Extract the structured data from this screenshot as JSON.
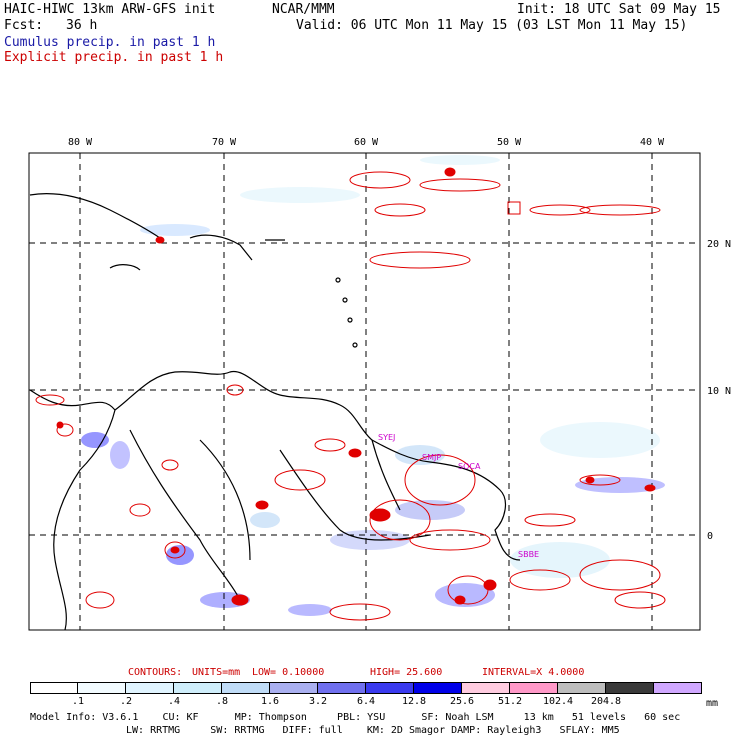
{
  "header": {
    "model_title": "HAIC-HIWC 13km ARW-GFS init",
    "org": "NCAR/MMM",
    "init": "Init: 18 UTC Sat 09 May 15",
    "fcst_label": "Fcst:",
    "fcst_value": "36 h",
    "valid": "Valid: 06 UTC Mon 11 May 15 (03 LST Mon 11 May 15)",
    "cumulus_legend": "Cumulus precip. in past 1 h",
    "explicit_legend": "Explicit precip. in past 1 h"
  },
  "map": {
    "lon_labels": [
      "80 W",
      "70 W",
      "60 W",
      "50 W",
      "40 W"
    ],
    "lat_labels": [
      "20 N",
      "10 N",
      "0"
    ],
    "stations": [
      "SYEJ",
      "SMJP",
      "SOCA",
      "SBBE"
    ],
    "colors": {
      "coast": "#000000",
      "explicit": "#e00000",
      "cumulus": "#5a5aff",
      "station": "#cc00cc"
    }
  },
  "contours": {
    "label": "CONTOURS:",
    "units": "UNITS=mm",
    "low": "LOW= 0.10000",
    "high": "HIGH= 25.600",
    "interval": "INTERVAL=X 4.0000"
  },
  "colorbar": {
    "unit": "mm",
    "labels": [
      ".1",
      ".2",
      ".4",
      ".8",
      "1.6",
      "3.2",
      "6.4",
      "12.8",
      "25.6",
      "51.2",
      "102.4",
      "204.8"
    ],
    "colors": [
      "#ffffff",
      "#f2fbff",
      "#e0f4ff",
      "#cfeefb",
      "#c0dcf7",
      "#aab0f0",
      "#7070ee",
      "#3a3aee",
      "#0000e8",
      "#ffcce0",
      "#ff99c8",
      "#bdbdbd",
      "#3a3a3a",
      "#d0a8ff"
    ]
  },
  "model_info": {
    "line1": "Model Info: V3.6.1    CU: KF      MP: Thompson     PBL: YSU      SF: Noah LSM     13 km   51 levels   60 sec",
    "line2": "LW: RRTMG     SW: RRTMG   DIFF: full    KM: 2D Smagor DAMP: Rayleigh3   SFLAY: MM5"
  }
}
